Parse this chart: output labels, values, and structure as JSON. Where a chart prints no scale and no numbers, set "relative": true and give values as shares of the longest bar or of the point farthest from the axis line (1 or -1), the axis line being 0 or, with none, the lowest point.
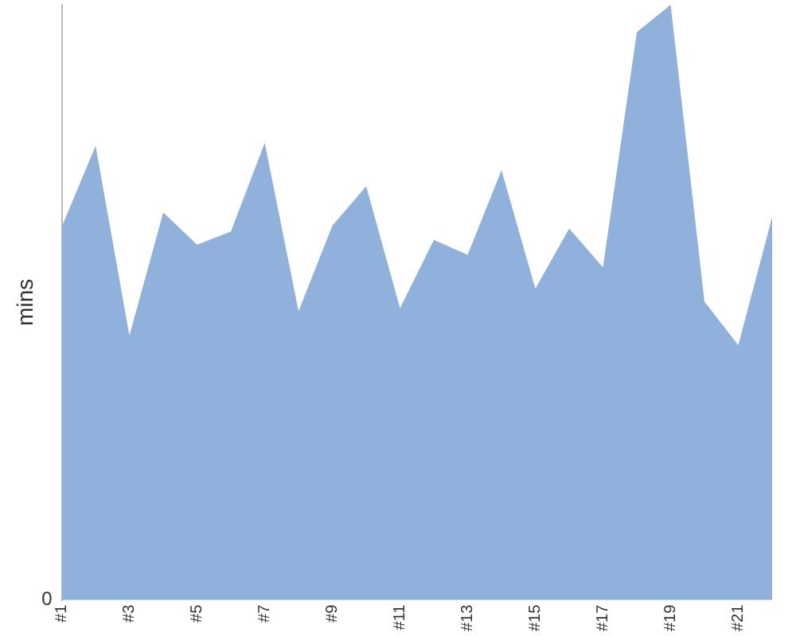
{
  "chart_data": {
    "type": "area",
    "relative": true,
    "ylabel": "mins",
    "color": "#8fb1db",
    "categories": [
      "#1",
      null,
      "#3",
      null,
      "#5",
      null,
      "#7",
      null,
      "#9",
      null,
      "#11",
      null,
      "#13",
      null,
      "#15",
      null,
      "#17",
      null,
      "#19",
      null,
      "#21",
      null
    ],
    "values": [
      0.627,
      0.763,
      0.444,
      0.651,
      0.597,
      0.619,
      0.768,
      0.485,
      0.629,
      0.695,
      0.49,
      0.605,
      0.58,
      0.722,
      0.523,
      0.624,
      0.559,
      0.954,
      1,
      0.501,
      0.428,
      0.643
    ],
    "annotations": [
      "0"
    ],
    "legend": false
  }
}
